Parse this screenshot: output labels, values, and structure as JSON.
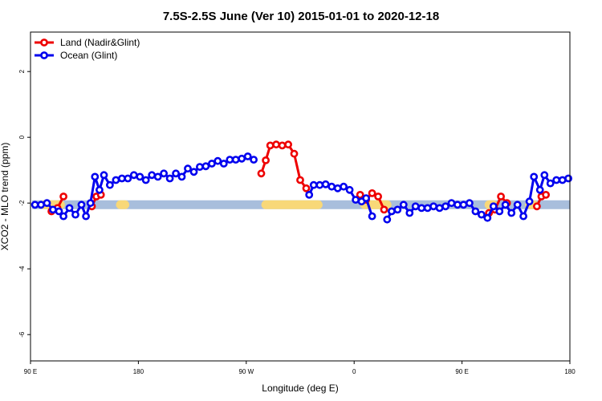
{
  "chart_data": {
    "type": "line",
    "title": "7.5S-2.5S June (Ver 10)   2015-01-01 to 2020-12-18",
    "xlabel": "Longitude (deg E)",
    "ylabel": "XCO2 - MLO trend (ppm)",
    "xlim": [
      90,
      450
    ],
    "ylim": [
      -6.8,
      3.2
    ],
    "x_ticks": [
      {
        "value": 90,
        "label": "90 E"
      },
      {
        "value": 162,
        "label": "180"
      },
      {
        "value": 234,
        "label": "90 W"
      },
      {
        "value": 306,
        "label": "0"
      },
      {
        "value": 378,
        "label": "90 E"
      },
      {
        "value": 450,
        "label": "180"
      }
    ],
    "y_ticks": [
      {
        "value": 2,
        "label": "2"
      },
      {
        "value": 0,
        "label": "0"
      },
      {
        "value": -2,
        "label": "-2"
      },
      {
        "value": -4,
        "label": "-4"
      },
      {
        "value": -6,
        "label": "-6"
      }
    ],
    "legend": {
      "position": "top-left"
    },
    "band": {
      "y_center": -2.05,
      "color": "#a8bedc",
      "highlight_color": "#f8d878",
      "highlights": [
        [
          99,
          110
        ],
        [
          150,
          153
        ],
        [
          247,
          282
        ],
        [
          313,
          328
        ],
        [
          396,
          399
        ],
        [
          423,
          426
        ]
      ]
    },
    "series": [
      {
        "name": "Land (Nadir&Glint)",
        "color": "#ee0000",
        "segments": [
          [
            [
              104,
              -2.25
            ],
            [
              108,
              -2.15
            ],
            [
              112,
              -1.8
            ]
          ],
          [
            [
              131,
              -2.1
            ],
            [
              134,
              -1.8
            ],
            [
              137,
              -1.75
            ]
          ],
          [
            [
              244,
              -1.1
            ],
            [
              247,
              -0.7
            ],
            [
              250,
              -0.25
            ],
            [
              254,
              -0.22
            ],
            [
              258,
              -0.25
            ],
            [
              262,
              -0.22
            ],
            [
              266,
              -0.5
            ],
            [
              270,
              -1.3
            ],
            [
              274,
              -1.55
            ]
          ],
          [
            [
              310,
              -1.75
            ],
            [
              314,
              -1.9
            ],
            [
              318,
              -1.7
            ],
            [
              322,
              -1.8
            ],
            [
              326,
              -2.2
            ]
          ],
          [
            [
              396,
              -2.3
            ],
            [
              400,
              -2.2
            ],
            [
              404,
              -1.8
            ],
            [
              408,
              -2.0
            ]
          ],
          [
            [
              428,
              -2.1
            ],
            [
              431,
              -1.8
            ],
            [
              434,
              -1.75
            ]
          ]
        ]
      },
      {
        "name": "Ocean (Glint)",
        "color": "#0000ee",
        "segments": [
          [
            [
              93,
              -2.05
            ],
            [
              97,
              -2.05
            ],
            [
              101,
              -2.0
            ],
            [
              105,
              -2.2
            ],
            [
              109,
              -2.25
            ],
            [
              112,
              -2.4
            ],
            [
              116,
              -2.15
            ],
            [
              120,
              -2.35
            ],
            [
              124,
              -2.05
            ],
            [
              127,
              -2.4
            ],
            [
              130,
              -2.0
            ],
            [
              133,
              -1.2
            ],
            [
              136,
              -1.6
            ],
            [
              139,
              -1.15
            ],
            [
              143,
              -1.45
            ],
            [
              147,
              -1.3
            ],
            [
              151,
              -1.25
            ],
            [
              155,
              -1.25
            ],
            [
              159,
              -1.15
            ],
            [
              163,
              -1.2
            ],
            [
              167,
              -1.3
            ],
            [
              171,
              -1.15
            ],
            [
              175,
              -1.2
            ],
            [
              179,
              -1.1
            ],
            [
              183,
              -1.25
            ],
            [
              187,
              -1.1
            ],
            [
              191,
              -1.2
            ],
            [
              195,
              -0.95
            ],
            [
              199,
              -1.05
            ],
            [
              203,
              -0.9
            ],
            [
              207,
              -0.88
            ],
            [
              211,
              -0.8
            ],
            [
              215,
              -0.72
            ],
            [
              219,
              -0.8
            ],
            [
              223,
              -0.68
            ],
            [
              227,
              -0.68
            ],
            [
              231,
              -0.65
            ],
            [
              235,
              -0.58
            ],
            [
              239,
              -0.68
            ]
          ],
          [
            [
              276,
              -1.75
            ],
            [
              279,
              -1.45
            ],
            [
              283,
              -1.45
            ],
            [
              287,
              -1.43
            ],
            [
              291,
              -1.5
            ],
            [
              295,
              -1.55
            ],
            [
              299,
              -1.5
            ],
            [
              303,
              -1.6
            ],
            [
              307,
              -1.9
            ],
            [
              311,
              -1.95
            ],
            [
              314,
              -1.85
            ],
            [
              318,
              -2.4
            ]
          ],
          [
            [
              328,
              -2.5
            ],
            [
              331,
              -2.25
            ],
            [
              335,
              -2.2
            ],
            [
              339,
              -2.05
            ],
            [
              343,
              -2.3
            ],
            [
              347,
              -2.1
            ],
            [
              351,
              -2.15
            ],
            [
              355,
              -2.15
            ],
            [
              359,
              -2.1
            ],
            [
              363,
              -2.15
            ],
            [
              367,
              -2.1
            ],
            [
              371,
              -2.0
            ],
            [
              375,
              -2.05
            ],
            [
              379,
              -2.05
            ],
            [
              383,
              -2.0
            ],
            [
              387,
              -2.25
            ],
            [
              391,
              -2.35
            ],
            [
              395,
              -2.45
            ],
            [
              399,
              -2.1
            ],
            [
              403,
              -2.25
            ],
            [
              407,
              -2.05
            ],
            [
              411,
              -2.3
            ],
            [
              415,
              -2.05
            ],
            [
              419,
              -2.4
            ],
            [
              423,
              -1.95
            ],
            [
              426,
              -1.2
            ],
            [
              430,
              -1.6
            ],
            [
              433,
              -1.15
            ],
            [
              437,
              -1.4
            ],
            [
              441,
              -1.3
            ],
            [
              445,
              -1.3
            ],
            [
              449,
              -1.25
            ]
          ]
        ]
      }
    ]
  }
}
